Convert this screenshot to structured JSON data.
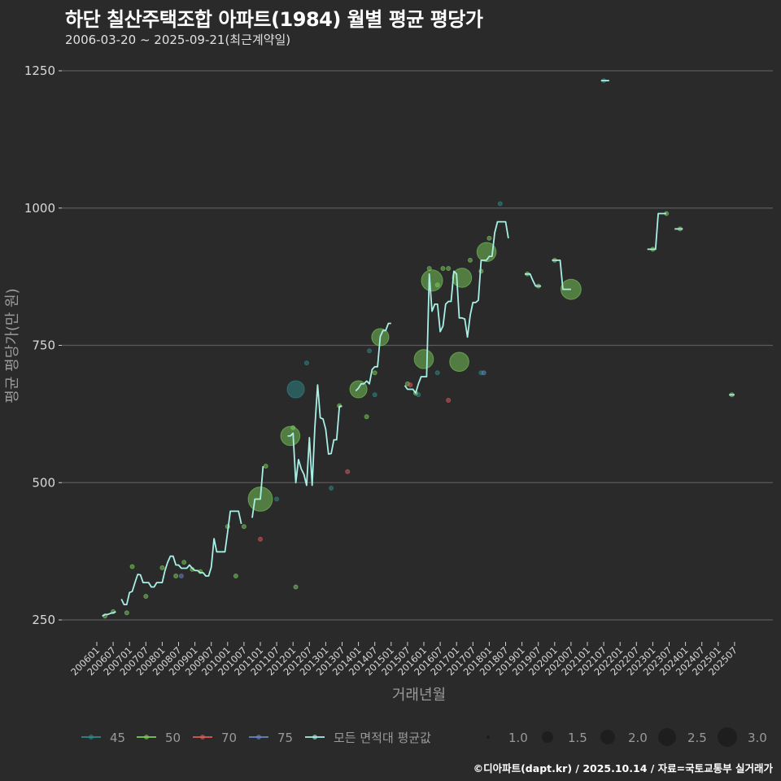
{
  "header": {
    "title": "하단 칠산주택조합 아파트(1984) 월별 평균 평당가",
    "subtitle": "2006-03-20 ~ 2025-09-21(최근계약일)"
  },
  "caption": "©디아파트(dapt.kr) / 2025.10.14 / 자료=국토교통부 실거래가",
  "colors": {
    "background": "#2a2a2b",
    "grid": "#5a5a5a",
    "s45": "#2e8b8b",
    "s50": "#7ccd5c",
    "s70": "#e05a5a",
    "s75": "#6a86c4",
    "avg": "#a8efe6"
  },
  "chart_data": {
    "type": "line",
    "title": "하단 칠산주택조합 아파트(1984) 월별 평균 평당가",
    "subtitle": "2006-03-20 ~ 2025-09-21(최근계약일)",
    "xlabel": "거래년월",
    "ylabel": "평균 평당가(만 원)",
    "ylim": [
      250,
      1250
    ],
    "yticks": [
      250,
      500,
      750,
      1000,
      1250
    ],
    "xticks": [
      "200601",
      "200607",
      "200701",
      "200707",
      "200801",
      "200807",
      "200901",
      "200907",
      "201001",
      "201007",
      "201101",
      "201107",
      "201201",
      "201207",
      "201301",
      "201307",
      "201401",
      "201407",
      "201501",
      "201507",
      "201601",
      "201607",
      "201701",
      "201707",
      "201801",
      "201807",
      "201901",
      "201907",
      "202001",
      "202007",
      "202101",
      "202107",
      "202201",
      "202207",
      "202301",
      "202307",
      "202401",
      "202407",
      "202501",
      "202507"
    ],
    "legend": {
      "series": [
        "45",
        "50",
        "70",
        "75",
        "모든 면적대 평균값"
      ],
      "size_title": "",
      "sizes": [
        "1.0",
        "1.5",
        "2.0",
        "2.5",
        "3.0"
      ],
      "position": "bottom"
    },
    "grid": true,
    "series": [
      {
        "name": "모든 면적대 평균값",
        "segments": [
          [
            [
              "200603",
              257
            ],
            [
              "200604",
              260
            ],
            [
              "200605",
              260
            ],
            [
              "200606",
              262
            ],
            [
              "200607",
              263
            ],
            [
              "200608",
              265
            ]
          ],
          [
            [
              "200610",
              288
            ],
            [
              "200611",
              278
            ],
            [
              "200612",
              278
            ],
            [
              "200701",
              300
            ],
            [
              "200702",
              302
            ],
            [
              "200703",
              318
            ],
            [
              "200704",
              333
            ],
            [
              "200705",
              332
            ],
            [
              "200706",
              318
            ],
            [
              "200707",
              318
            ],
            [
              "200708",
              318
            ],
            [
              "200709",
              310
            ],
            [
              "200710",
              310
            ],
            [
              "200711",
              318
            ],
            [
              "200712",
              318
            ],
            [
              "200801",
              318
            ],
            [
              "200802",
              340
            ],
            [
              "200803",
              355
            ],
            [
              "200804",
              366
            ],
            [
              "200805",
              366
            ],
            [
              "200806",
              350
            ],
            [
              "200807",
              350
            ],
            [
              "200808",
              344
            ],
            [
              "200809",
              344
            ],
            [
              "200810",
              344
            ],
            [
              "200811",
              350
            ],
            [
              "200812",
              344
            ],
            [
              "200901",
              340
            ],
            [
              "200902",
              340
            ],
            [
              "200903",
              336
            ],
            [
              "200904",
              336
            ],
            [
              "200905",
              330
            ],
            [
              "200906",
              330
            ],
            [
              "200907",
              346
            ],
            [
              "200908",
              398
            ],
            [
              "200909",
              374
            ],
            [
              "200910",
              374
            ],
            [
              "200911",
              374
            ],
            [
              "200912",
              374
            ],
            [
              "201001",
              410
            ],
            [
              "201002",
              448
            ],
            [
              "201003",
              448
            ],
            [
              "201004",
              448
            ],
            [
              "201005",
              448
            ],
            [
              "201006",
              425
            ]
          ],
          [
            [
              "201010",
              436
            ],
            [
              "201011",
              470
            ],
            [
              "201012",
              470
            ],
            [
              "201101",
              470
            ],
            [
              "201102",
              530
            ]
          ],
          [
            [
              "201111",
              585
            ],
            [
              "201112",
              585
            ],
            [
              "201201",
              590
            ],
            [
              "201202",
              500
            ],
            [
              "201203",
              542
            ],
            [
              "201204",
              525
            ],
            [
              "201205",
              515
            ],
            [
              "201206",
              495
            ],
            [
              "201207",
              582
            ],
            [
              "201208",
              495
            ],
            [
              "201209",
              600
            ],
            [
              "201210",
              678
            ],
            [
              "201211",
              618
            ],
            [
              "201212",
              616
            ],
            [
              "201301",
              597
            ],
            [
              "201302",
              552
            ],
            [
              "201303",
              553
            ],
            [
              "201304",
              578
            ],
            [
              "201305",
              578
            ],
            [
              "201306",
              639
            ],
            [
              "201307",
              639
            ]
          ],
          [
            [
              "201312",
              667
            ],
            [
              "201401",
              672
            ],
            [
              "201402",
              680
            ],
            [
              "201403",
              680
            ],
            [
              "201404",
              685
            ],
            [
              "201405",
              680
            ],
            [
              "201406",
              706
            ],
            [
              "201407",
              711
            ],
            [
              "201408",
              711
            ],
            [
              "201409",
              766
            ],
            [
              "201410",
              777
            ],
            [
              "201411",
              777
            ],
            [
              "201412",
              790
            ],
            [
              "201501",
              790
            ]
          ],
          [
            [
              "201506",
              677
            ],
            [
              "201507",
              670
            ],
            [
              "201508",
              670
            ],
            [
              "201509",
              670
            ],
            [
              "201510",
              663
            ],
            [
              "201511",
              680
            ],
            [
              "201512",
              693
            ],
            [
              "201601",
              693
            ],
            [
              "201602",
              693
            ],
            [
              "201603",
              880
            ],
            [
              "201604",
              812
            ],
            [
              "201605",
              825
            ],
            [
              "201606",
              825
            ],
            [
              "201607",
              775
            ],
            [
              "201608",
              785
            ],
            [
              "201609",
              825
            ],
            [
              "201610",
              830
            ],
            [
              "201611",
              830
            ],
            [
              "201612",
              885
            ],
            [
              "201701",
              880
            ],
            [
              "201702",
              800
            ],
            [
              "201703",
              800
            ],
            [
              "201704",
              798
            ],
            [
              "201705",
              765
            ],
            [
              "201706",
              805
            ],
            [
              "201707",
              828
            ],
            [
              "201708",
              828
            ],
            [
              "201709",
              832
            ],
            [
              "201710",
              905
            ],
            [
              "201711",
              905
            ],
            [
              "201712",
              905
            ],
            [
              "201801",
              912
            ],
            [
              "201802",
              912
            ],
            [
              "201803",
              955
            ],
            [
              "201804",
              975
            ],
            [
              "201805",
              975
            ],
            [
              "201806",
              975
            ],
            [
              "201807",
              975
            ],
            [
              "201808",
              945
            ]
          ],
          [
            [
              "201902",
              880
            ],
            [
              "201903",
              880
            ],
            [
              "201904",
              880
            ],
            [
              "201905",
              868
            ],
            [
              "201906",
              858
            ],
            [
              "201907",
              858
            ],
            [
              "201908",
              858
            ]
          ],
          [
            [
              "201912",
              905
            ],
            [
              "202001",
              905
            ],
            [
              "202002",
              905
            ],
            [
              "202003",
              905
            ],
            [
              "202004",
              852
            ],
            [
              "202005",
              852
            ],
            [
              "202006",
              852
            ],
            [
              "202007",
              852
            ]
          ],
          [
            [
              "202106",
              1232
            ],
            [
              "202107",
              1232
            ],
            [
              "202108",
              1232
            ],
            [
              "202109",
              1232
            ]
          ],
          [
            [
              "202211",
              925
            ],
            [
              "202212",
              925
            ],
            [
              "202301",
              925
            ],
            [
              "202302",
              925
            ],
            [
              "202303",
              990
            ],
            [
              "202304",
              990
            ],
            [
              "202305",
              990
            ],
            [
              "202306",
              990
            ]
          ],
          [
            [
              "202309",
              962
            ],
            [
              "202310",
              962
            ],
            [
              "202311",
              962
            ],
            [
              "202312",
              962
            ]
          ],
          [
            [
              "202505",
              660
            ],
            [
              "202506",
              660
            ],
            [
              "202507",
              660
            ]
          ]
        ]
      },
      {
        "name": "45",
        "points": [
          [
            "201107",
            470,
            1.0
          ],
          [
            "201202",
            670,
            2.3
          ],
          [
            "201303",
            490,
            1.0
          ],
          [
            "201405",
            740,
            1.0
          ],
          [
            "201407",
            660,
            1.0
          ],
          [
            "201511",
            660,
            1.0
          ],
          [
            "201606",
            700,
            1.0
          ],
          [
            "201710",
            700,
            1.0
          ],
          [
            "202107",
            1232,
            1.0
          ],
          [
            "201805",
            1008,
            1.0
          ],
          [
            "201206",
            718,
            1.0
          ]
        ]
      },
      {
        "name": "50",
        "points": [
          [
            "200604",
            257,
            1.0
          ],
          [
            "200607",
            265,
            1.0
          ],
          [
            "200612",
            263,
            1.0
          ],
          [
            "200702",
            347,
            1.0
          ],
          [
            "200707",
            293,
            1.0
          ],
          [
            "200801",
            345,
            1.0
          ],
          [
            "200806",
            330,
            1.0
          ],
          [
            "200809",
            355,
            1.0
          ],
          [
            "200812",
            342,
            1.0
          ],
          [
            "200903",
            338,
            1.0
          ],
          [
            "201001",
            420,
            1.0
          ],
          [
            "201004",
            330,
            1.0
          ],
          [
            "201007",
            420,
            1.0
          ],
          [
            "201101",
            470,
            3.0
          ],
          [
            "201103",
            530,
            1.0
          ],
          [
            "201112",
            585,
            2.5
          ],
          [
            "201201",
            600,
            1.0
          ],
          [
            "201202",
            310,
            1.0
          ],
          [
            "201306",
            640,
            1.0
          ],
          [
            "201401",
            670,
            2.3
          ],
          [
            "201404",
            620,
            1.0
          ],
          [
            "201407",
            700,
            1.0
          ],
          [
            "201409",
            765,
            2.3
          ],
          [
            "201507",
            680,
            1.0
          ],
          [
            "201510",
            663,
            1.0
          ],
          [
            "201601",
            725,
            2.5
          ],
          [
            "201603",
            890,
            1.0
          ],
          [
            "201604",
            868,
            2.7
          ],
          [
            "201606",
            860,
            1.0
          ],
          [
            "201608",
            890,
            1.0
          ],
          [
            "201610",
            890,
            1.0
          ],
          [
            "201702",
            720,
            2.5
          ],
          [
            "201703",
            873,
            2.5
          ],
          [
            "201706",
            905,
            1.0
          ],
          [
            "201710",
            885,
            1.0
          ],
          [
            "201712",
            920,
            2.5
          ],
          [
            "201801",
            945,
            1.0
          ],
          [
            "201903",
            880,
            1.0
          ],
          [
            "201907",
            858,
            1.0
          ],
          [
            "202001",
            905,
            1.0
          ],
          [
            "202007",
            852,
            2.6
          ],
          [
            "202301",
            925,
            1.0
          ],
          [
            "202306",
            990,
            1.0
          ],
          [
            "202311",
            962,
            1.0
          ],
          [
            "202506",
            660,
            1.0
          ]
        ]
      },
      {
        "name": "70",
        "points": [
          [
            "201101",
            397,
            1.0
          ],
          [
            "201309",
            520,
            1.0
          ],
          [
            "201508",
            678,
            1.0
          ],
          [
            "201610",
            650,
            1.0
          ]
        ]
      },
      {
        "name": "75",
        "points": [
          [
            "200808",
            330,
            1.0
          ],
          [
            "201711",
            700,
            1.0
          ]
        ]
      }
    ]
  },
  "plot": {
    "x_axis_title": "거래년월",
    "y_axis_title": "평균 평당가(만 원)"
  }
}
